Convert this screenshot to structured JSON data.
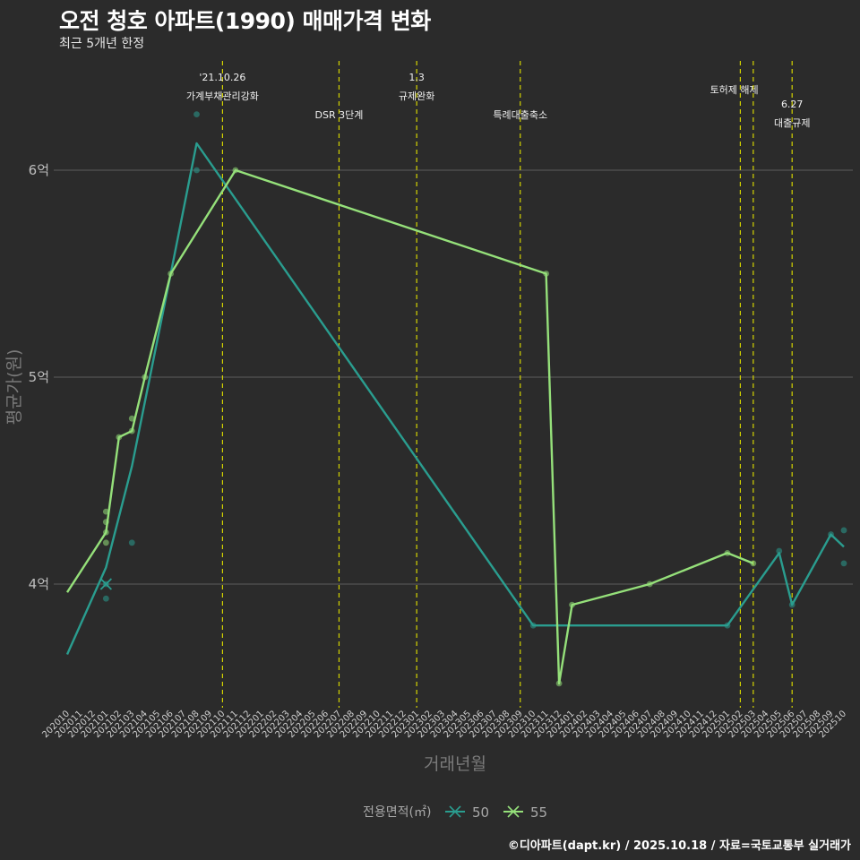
{
  "title": "오전 청호 아파트(1990) 매매가격 변화",
  "subtitle": "최근 5개년 한정",
  "caption": "©디아파트(dapt.kr) / 2025.10.18 / 자료=국토교통부 실거래가",
  "chart_data": {
    "type": "line",
    "title": "오전 청호 아파트(1990) 매매가격 변화",
    "xlabel": "거래년월",
    "ylabel": "평균가(원)",
    "ylim": [
      3.4,
      6.45
    ],
    "yticks": [
      {
        "value": 4,
        "label": "4억"
      },
      {
        "value": 5,
        "label": "5억"
      },
      {
        "value": 6,
        "label": "6억"
      }
    ],
    "x_start": "202010",
    "x_end": "202510",
    "x_tick_labels": [
      "202010",
      "202011",
      "202012",
      "202101",
      "202102",
      "202103",
      "202104",
      "202105",
      "202106",
      "202107",
      "202108",
      "202109",
      "202110",
      "202111",
      "202112",
      "202201",
      "202202",
      "202203",
      "202204",
      "202205",
      "202206",
      "202207",
      "202208",
      "202209",
      "202210",
      "202211",
      "202212",
      "202301",
      "202302",
      "202303",
      "202304",
      "202305",
      "202306",
      "202307",
      "202308",
      "202309",
      "202310",
      "202311",
      "202312",
      "202401",
      "202402",
      "202403",
      "202404",
      "202405",
      "202406",
      "202407",
      "202408",
      "202409",
      "202410",
      "202411",
      "202412",
      "202501",
      "202502",
      "202503",
      "202504",
      "202505",
      "202506",
      "202507",
      "202508",
      "202509",
      "202510"
    ],
    "legend_title": "전용면적(㎡)",
    "legend_position": "bottom",
    "series": [
      {
        "name": "50",
        "color": "#2a9d8f",
        "line": [
          {
            "x": "202010",
            "y": 3.66
          },
          {
            "x": "202101",
            "y": 4.08
          },
          {
            "x": "202103",
            "y": 4.57
          },
          {
            "x": "202106",
            "y": 5.5
          },
          {
            "x": "202108",
            "y": 6.13
          },
          {
            "x": "202310",
            "y": 3.8
          },
          {
            "x": "202501",
            "y": 3.8
          },
          {
            "x": "202505",
            "y": 4.15
          },
          {
            "x": "202506",
            "y": 3.9
          },
          {
            "x": "202509",
            "y": 4.24
          },
          {
            "x": "202510",
            "y": 4.18
          }
        ],
        "points": [
          {
            "x": "202101",
            "y": 3.93
          },
          {
            "x": "202101",
            "y": 4.0
          },
          {
            "x": "202103",
            "y": 4.2
          },
          {
            "x": "202108",
            "y": 6.27
          },
          {
            "x": "202108",
            "y": 6.0
          },
          {
            "x": "202310",
            "y": 3.8
          },
          {
            "x": "202501",
            "y": 3.8
          },
          {
            "x": "202505",
            "y": 4.16
          },
          {
            "x": "202506",
            "y": 3.9
          },
          {
            "x": "202509",
            "y": 4.24
          },
          {
            "x": "202510",
            "y": 4.26
          },
          {
            "x": "202510",
            "y": 4.1
          }
        ]
      },
      {
        "name": "55",
        "color": "#95e07a",
        "line": [
          {
            "x": "202010",
            "y": 3.96
          },
          {
            "x": "202101",
            "y": 4.25
          },
          {
            "x": "202102",
            "y": 4.71
          },
          {
            "x": "202103",
            "y": 4.74
          },
          {
            "x": "202104",
            "y": 5.0
          },
          {
            "x": "202106",
            "y": 5.5
          },
          {
            "x": "202111",
            "y": 6.0
          },
          {
            "x": "202311",
            "y": 5.5
          },
          {
            "x": "202312",
            "y": 3.52
          },
          {
            "x": "202401",
            "y": 3.9
          },
          {
            "x": "202407",
            "y": 4.0
          },
          {
            "x": "202501",
            "y": 4.15
          },
          {
            "x": "202503",
            "y": 4.1
          }
        ],
        "points": [
          {
            "x": "202101",
            "y": 4.35
          },
          {
            "x": "202101",
            "y": 4.3
          },
          {
            "x": "202101",
            "y": 4.25
          },
          {
            "x": "202101",
            "y": 4.2
          },
          {
            "x": "202102",
            "y": 4.71
          },
          {
            "x": "202103",
            "y": 4.8
          },
          {
            "x": "202103",
            "y": 4.74
          },
          {
            "x": "202104",
            "y": 5.0
          },
          {
            "x": "202106",
            "y": 5.5
          },
          {
            "x": "202111",
            "y": 6.0
          },
          {
            "x": "202311",
            "y": 5.5
          },
          {
            "x": "202312",
            "y": 3.52
          },
          {
            "x": "202401",
            "y": 3.9
          },
          {
            "x": "202407",
            "y": 4.0
          },
          {
            "x": "202501",
            "y": 4.15
          },
          {
            "x": "202503",
            "y": 4.1
          }
        ]
      }
    ],
    "events": [
      {
        "x": "202110",
        "label_top": "'21.10.26",
        "label_bottom": "가계부채관리강화",
        "tier": 0
      },
      {
        "x": "202207",
        "label_top": "",
        "label_bottom": "DSR 3단계",
        "tier": 1
      },
      {
        "x": "202301",
        "label_top": "1.3",
        "label_bottom": "규제완화",
        "tier": 0
      },
      {
        "x": "202309",
        "label_top": "",
        "label_bottom": "특례대출축소",
        "tier": 1
      },
      {
        "x": "202502",
        "label_top": "",
        "label_bottom": "토허제 해제",
        "tier": 2
      },
      {
        "x": "202503",
        "label_top": "",
        "label_bottom": "",
        "tier": 2
      },
      {
        "x": "202506",
        "label_top": "6.27",
        "label_bottom": "대출규제",
        "tier": 3
      }
    ]
  }
}
